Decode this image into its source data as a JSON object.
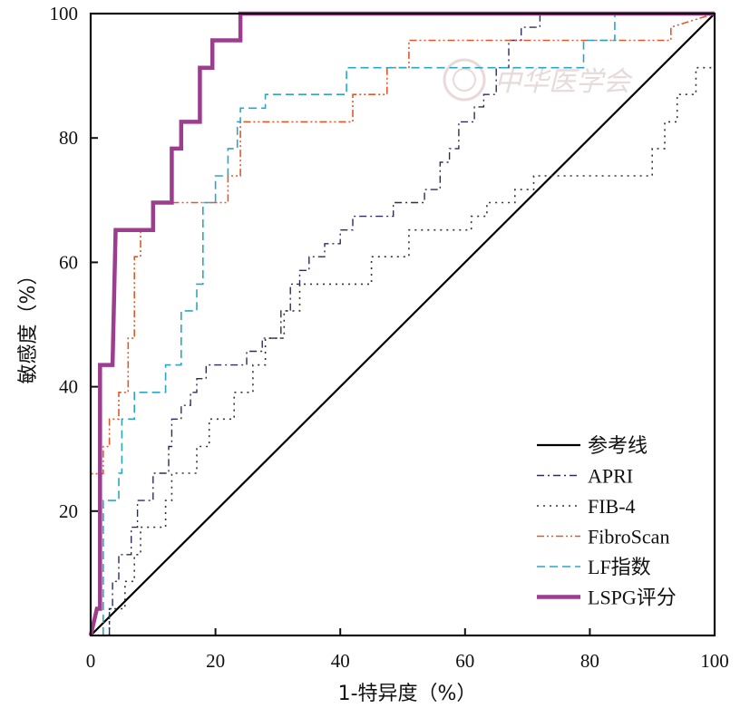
{
  "chart_data": {
    "type": "line",
    "title": "",
    "xlabel": "1-特异度（%）",
    "ylabel": "敏感度（%）",
    "xlim": [
      0,
      100
    ],
    "ylim": [
      0,
      100
    ],
    "x_ticks": [
      "0",
      "20",
      "40",
      "60",
      "80",
      "100"
    ],
    "y_ticks": [
      "20",
      "40",
      "60",
      "80",
      "100"
    ],
    "grid": false,
    "legend_position": "bottom-right",
    "watermark_text": "中华医学会",
    "series": [
      {
        "name": "参考线",
        "color": "#000000",
        "dash": "solid",
        "width": 2.2,
        "x": [
          0,
          100
        ],
        "y": [
          0,
          100
        ]
      },
      {
        "name": "APRI",
        "color": "#2b2d5e",
        "dash": "8,4,2,4",
        "width": 1.4,
        "x": [
          3,
          3,
          3.5,
          3.5,
          4.5,
          4.5,
          6.5,
          6.5,
          7.5,
          7.5,
          10,
          10,
          12.5,
          12.5,
          13,
          13,
          14.5,
          14.5,
          16,
          16,
          17,
          17,
          18.5,
          18.5,
          20,
          20,
          25,
          25,
          27.5,
          27.5,
          30.5,
          30.5,
          32,
          32,
          33.5,
          33.5,
          35,
          35,
          37.5,
          37.5,
          40,
          40,
          42,
          42,
          48.5,
          48.5,
          53.5,
          53.5,
          56,
          56,
          57.5,
          57.5,
          59,
          59,
          61.5,
          61.5,
          63,
          63,
          65,
          65,
          67,
          67,
          69,
          69,
          72,
          72,
          100
        ],
        "y": [
          0,
          4.3,
          4.3,
          8.7,
          8.7,
          13,
          13,
          17.4,
          17.4,
          21.7,
          21.7,
          26.1,
          26.1,
          30.4,
          30.4,
          34.8,
          34.8,
          37,
          37,
          39.1,
          39.1,
          41.3,
          41.3,
          43.5,
          43.5,
          43.5,
          43.5,
          45.7,
          45.7,
          47.8,
          47.8,
          52.2,
          52.2,
          56.5,
          56.5,
          58.7,
          58.7,
          60.9,
          60.9,
          63,
          63,
          65.2,
          65.2,
          67.4,
          67.4,
          69.6,
          69.6,
          71.7,
          71.7,
          76.1,
          76.1,
          78.3,
          78.3,
          82.6,
          82.6,
          85,
          85,
          87,
          87,
          91.3,
          91.3,
          95.7,
          95.7,
          97.8,
          97.8,
          100,
          100
        ]
      },
      {
        "name": "FIB-4",
        "color": "#333333",
        "dash": "2,5",
        "width": 1.6,
        "x": [
          3,
          3,
          5.5,
          5.5,
          7,
          7,
          8,
          8,
          12,
          12,
          13,
          13,
          17,
          17,
          19,
          19,
          23,
          23,
          26,
          26,
          28,
          28,
          31,
          31,
          33.5,
          33.5,
          45,
          45,
          51,
          51,
          61,
          61,
          63.5,
          63.5,
          68,
          68,
          71,
          71,
          90,
          90,
          92,
          92,
          94,
          94,
          97,
          97,
          100
        ],
        "y": [
          0,
          4.3,
          4.3,
          8.7,
          8.7,
          13,
          13,
          17.4,
          17.4,
          21.7,
          21.7,
          26.1,
          26.1,
          30.4,
          30.4,
          34.8,
          34.8,
          39.1,
          39.1,
          43.5,
          43.5,
          47.8,
          47.8,
          52.2,
          52.2,
          56.5,
          56.5,
          60.9,
          60.9,
          65.2,
          65.2,
          67.4,
          67.4,
          69.6,
          69.6,
          71.7,
          71.7,
          73.9,
          73.9,
          78.3,
          78.3,
          82.6,
          82.6,
          87,
          87,
          91.3,
          91.3
        ]
      },
      {
        "name": "FibroScan",
        "color": "#e0592b",
        "dash": "8,3,2,3,2,3",
        "width": 1.6,
        "x": [
          0,
          0,
          2,
          2,
          3,
          3,
          4.5,
          4.5,
          6,
          6,
          7,
          7,
          8,
          8,
          10,
          10,
          12,
          12,
          14.5,
          14.5,
          16,
          16,
          18,
          18,
          22,
          22,
          24,
          24,
          26,
          26,
          29,
          29,
          34,
          34,
          37,
          37,
          42,
          42,
          45,
          45,
          47.5,
          47.5,
          51,
          51,
          53,
          53,
          59,
          59,
          63,
          63,
          67,
          67,
          93,
          93,
          100
        ],
        "y": [
          0,
          26,
          26,
          30.4,
          30.4,
          34.8,
          34.8,
          39.1,
          39.1,
          47.8,
          47.8,
          60.9,
          60.9,
          65.2,
          65.2,
          69.6,
          69.6,
          69.6,
          69.6,
          69.6,
          69.6,
          69.6,
          69.6,
          69.6,
          69.6,
          73.9,
          73.9,
          82.6,
          82.6,
          82.6,
          82.6,
          82.6,
          82.6,
          82.6,
          82.6,
          82.6,
          82.6,
          87,
          87,
          87,
          87,
          91.3,
          91.3,
          95.7,
          95.7,
          95.7,
          95.7,
          95.7,
          95.7,
          95.7,
          95.7,
          95.7,
          95.7,
          97.8,
          100
        ]
      },
      {
        "name": "LF指数",
        "color": "#2aa6c4",
        "dash": "9,5",
        "width": 1.6,
        "x": [
          2,
          2,
          4.5,
          4.5,
          5,
          5,
          7,
          7,
          9,
          9,
          12,
          12,
          14.5,
          14.5,
          17,
          17,
          18,
          18,
          20,
          20,
          22,
          22,
          23.5,
          23.5,
          24,
          24,
          28,
          28,
          31,
          31,
          41,
          41,
          44,
          44,
          79,
          79,
          84,
          84,
          100
        ],
        "y": [
          0,
          21.7,
          21.7,
          26.1,
          26.1,
          34.8,
          34.8,
          39.1,
          39.1,
          39.1,
          39.1,
          43.5,
          43.5,
          52.2,
          52.2,
          56.5,
          56.5,
          69.6,
          69.6,
          73.9,
          73.9,
          78.3,
          78.3,
          82.6,
          82.6,
          84.8,
          84.8,
          87,
          87,
          87,
          87,
          91.3,
          91.3,
          91.3,
          91.3,
          95.7,
          95.7,
          100,
          100
        ]
      },
      {
        "name": "LSPG评分",
        "color": "#9c3d8f",
        "dash": "solid",
        "width": 4.5,
        "x": [
          0,
          1,
          1,
          1.5,
          1.5,
          3.5,
          3.5,
          4,
          4,
          10,
          10,
          13,
          13,
          14.5,
          14.5,
          17.5,
          17.5,
          19.5,
          19.5,
          24,
          24,
          100
        ],
        "y": [
          0,
          4.3,
          4.3,
          4.3,
          43.5,
          43.5,
          43.5,
          65.2,
          65.2,
          65.2,
          69.6,
          69.6,
          78.3,
          78.3,
          82.6,
          82.6,
          91.3,
          91.3,
          95.7,
          95.7,
          100,
          100
        ]
      }
    ]
  }
}
